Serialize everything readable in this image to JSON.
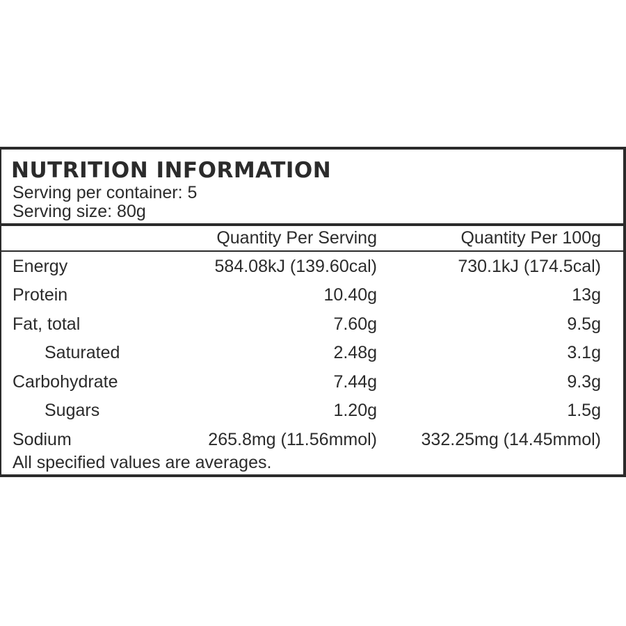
{
  "panel": {
    "title": "NUTRITION INFORMATION",
    "servings_per_container": "Serving per container: 5",
    "serving_size": "Serving size: 80g"
  },
  "columns": {
    "per_serving": "Quantity Per Serving",
    "per_100g": "Quantity Per 100g"
  },
  "rows": [
    {
      "label": "Energy",
      "per_serving": "584.08kJ (139.60cal)",
      "per_100g": "730.1kJ (174.5cal)"
    },
    {
      "label": "Protein",
      "per_serving": "10.40g",
      "per_100g": "13g"
    },
    {
      "label": "Fat, total",
      "per_serving": "7.60g",
      "per_100g": "9.5g"
    },
    {
      "label": "Saturated",
      "per_serving": "2.48g",
      "per_100g": "3.1g"
    },
    {
      "label": "Carbohydrate",
      "per_serving": "7.44g",
      "per_100g": "9.3g"
    },
    {
      "label": "Sugars",
      "per_serving": "1.20g",
      "per_100g": "1.5g"
    },
    {
      "label": "Sodium",
      "per_serving": "265.8mg (11.56mmol)",
      "per_100g": "332.25mg (14.45mmol)"
    }
  ],
  "footer": "All specified values are averages."
}
